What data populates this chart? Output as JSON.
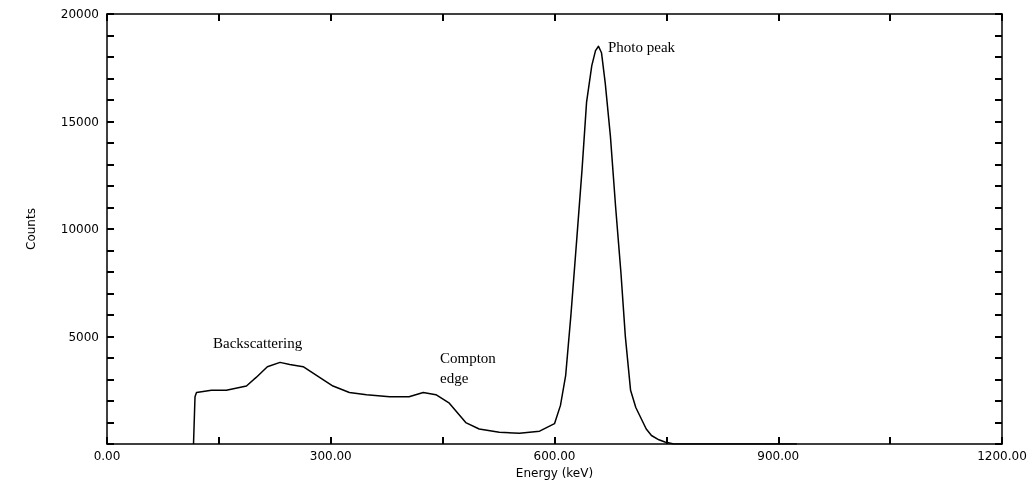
{
  "chart_data": {
    "type": "line",
    "xlabel": "Energy (keV)",
    "ylabel": "Counts",
    "xlim": [
      0,
      1200
    ],
    "ylim": [
      0,
      20000
    ],
    "xticks": [
      {
        "value": 0,
        "label": "0.00"
      },
      {
        "value": 150,
        "label": null
      },
      {
        "value": 300,
        "label": "300.00"
      },
      {
        "value": 450,
        "label": null
      },
      {
        "value": 600,
        "label": "600.00"
      },
      {
        "value": 750,
        "label": null
      },
      {
        "value": 900,
        "label": "900.00"
      },
      {
        "value": 1050,
        "label": null
      },
      {
        "value": 1200,
        "label": "1200.00"
      }
    ],
    "yticks": [
      {
        "value": 0,
        "label": null
      },
      {
        "value": 1000,
        "label": null
      },
      {
        "value": 2000,
        "label": null
      },
      {
        "value": 3000,
        "label": null
      },
      {
        "value": 4000,
        "label": null
      },
      5000,
      {
        "value": 6000,
        "label": null
      },
      {
        "value": 7000,
        "label": null
      },
      {
        "value": 8000,
        "label": null
      },
      {
        "value": 9000,
        "label": null
      },
      10000,
      {
        "value": 11000,
        "label": null
      },
      {
        "value": 12000,
        "label": null
      },
      {
        "value": 13000,
        "label": null
      },
      {
        "value": 14000,
        "label": null
      },
      15000,
      {
        "value": 16000,
        "label": null
      },
      {
        "value": 17000,
        "label": null
      },
      {
        "value": 18000,
        "label": null
      },
      {
        "value": 19000,
        "label": null
      },
      20000
    ],
    "grid": false,
    "marker": "none",
    "line_style": "solid",
    "series": [
      {
        "color": "#000000",
        "x": [
          116,
          118,
          120,
          140,
          160,
          187,
          200,
          215,
          232,
          245,
          263,
          285,
          303,
          325,
          348,
          379,
          405,
          424,
          441,
          459,
          481,
          499,
          526,
          553,
          580,
          600,
          608,
          615,
          622,
          630,
          637,
          643,
          650,
          655,
          659,
          663,
          668,
          675,
          682,
          689,
          695,
          702,
          709,
          716,
          723,
          730,
          740,
          748,
          760,
          800,
          860,
          925
        ],
        "values": [
          0,
          2200,
          2400,
          2500,
          2500,
          2700,
          3100,
          3600,
          3800,
          3700,
          3600,
          3100,
          2700,
          2400,
          2300,
          2200,
          2200,
          2400,
          2300,
          1900,
          1000,
          700,
          550,
          500,
          600,
          950,
          1800,
          3200,
          6000,
          9600,
          12800,
          15900,
          17600,
          18300,
          18500,
          18200,
          16800,
          14300,
          11000,
          8000,
          5000,
          2500,
          1700,
          1200,
          700,
          400,
          200,
          100,
          0,
          0,
          0,
          0
        ]
      }
    ],
    "annotations": [
      "Backscattering",
      "Compton edge",
      "Photo peak"
    ]
  }
}
